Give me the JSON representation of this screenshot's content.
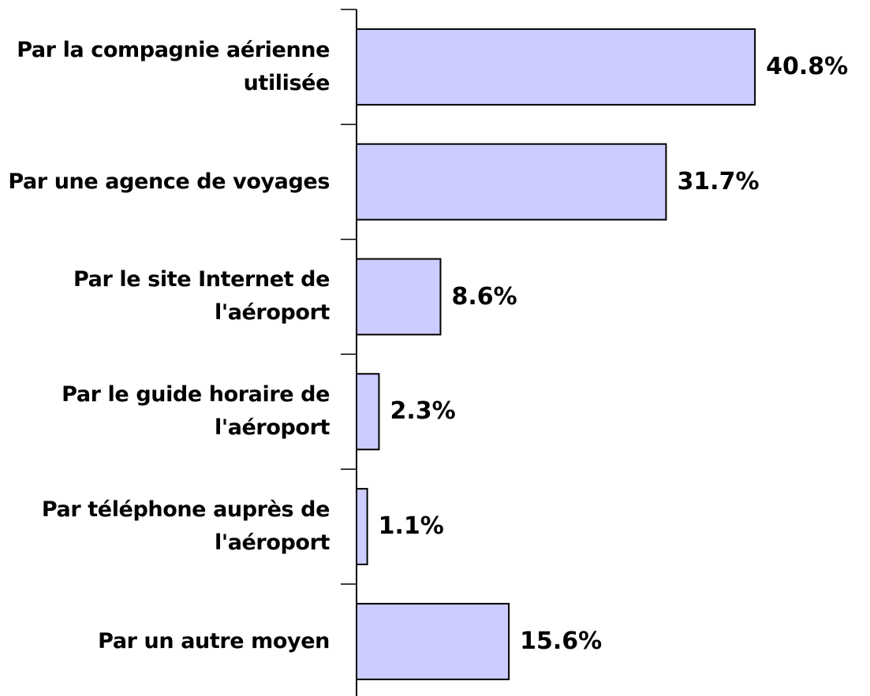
{
  "chart_data": {
    "type": "bar",
    "orientation": "horizontal",
    "categories": [
      "Par la compagnie aérienne utilisée",
      "Par une agence de voyages",
      "Par le site Internet de l'aéroport",
      "Par le guide horaire de l'aéroport",
      "Par téléphone auprès de l'aéroport",
      "Par un autre moyen"
    ],
    "values": [
      40.8,
      31.7,
      8.6,
      2.3,
      1.1,
      15.6
    ],
    "value_labels": [
      "40.8%",
      "31.7%",
      "8.6%",
      "2.3%",
      "1.1%",
      "15.6%"
    ],
    "color": "#ccccff"
  }
}
